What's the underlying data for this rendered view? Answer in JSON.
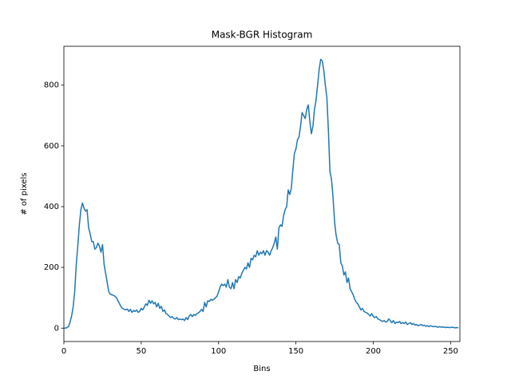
{
  "chart_data": {
    "type": "line",
    "title": "Mask-BGR Histogram",
    "x_label": "Bins",
    "y_label": "# of pixels",
    "color": "#1f77b4",
    "x": [
      0,
      1,
      2,
      3,
      4,
      5,
      6,
      7,
      8,
      9,
      10,
      11,
      12,
      13,
      14,
      15,
      16,
      17,
      18,
      19,
      20,
      21,
      22,
      23,
      24,
      25,
      26,
      27,
      28,
      29,
      30,
      31,
      32,
      33,
      34,
      35,
      36,
      37,
      38,
      39,
      40,
      41,
      42,
      43,
      44,
      45,
      46,
      47,
      48,
      49,
      50,
      51,
      52,
      53,
      54,
      55,
      56,
      57,
      58,
      59,
      60,
      61,
      62,
      63,
      64,
      65,
      66,
      67,
      68,
      69,
      70,
      71,
      72,
      73,
      74,
      75,
      76,
      77,
      78,
      79,
      80,
      81,
      82,
      83,
      84,
      85,
      86,
      87,
      88,
      89,
      90,
      91,
      92,
      93,
      94,
      95,
      96,
      97,
      98,
      99,
      100,
      101,
      102,
      103,
      104,
      105,
      106,
      107,
      108,
      109,
      110,
      111,
      112,
      113,
      114,
      115,
      116,
      117,
      118,
      119,
      120,
      121,
      122,
      123,
      124,
      125,
      126,
      127,
      128,
      129,
      130,
      131,
      132,
      133,
      134,
      135,
      136,
      137,
      138,
      139,
      140,
      141,
      142,
      143,
      144,
      145,
      146,
      147,
      148,
      149,
      150,
      151,
      152,
      153,
      154,
      155,
      156,
      157,
      158,
      159,
      160,
      161,
      162,
      163,
      164,
      165,
      166,
      167,
      168,
      169,
      170,
      171,
      172,
      173,
      174,
      175,
      176,
      177,
      178,
      179,
      180,
      181,
      182,
      183,
      184,
      185,
      186,
      187,
      188,
      189,
      190,
      191,
      192,
      193,
      194,
      195,
      196,
      197,
      198,
      199,
      200,
      201,
      202,
      203,
      204,
      205,
      206,
      207,
      208,
      209,
      210,
      211,
      212,
      213,
      214,
      215,
      216,
      217,
      218,
      219,
      220,
      221,
      222,
      223,
      224,
      225,
      226,
      227,
      228,
      229,
      230,
      231,
      232,
      233,
      234,
      235,
      236,
      237,
      238,
      239,
      240,
      241,
      242,
      243,
      244,
      245,
      246,
      247,
      248,
      249,
      250,
      251,
      252,
      253,
      254,
      255
    ],
    "values": [
      0,
      0,
      2,
      5,
      20,
      40,
      70,
      120,
      210,
      270,
      340,
      390,
      412,
      395,
      385,
      390,
      330,
      310,
      285,
      285,
      260,
      265,
      280,
      270,
      250,
      275,
      210,
      180,
      150,
      120,
      112,
      110,
      108,
      105,
      100,
      90,
      80,
      70,
      65,
      62,
      60,
      63,
      55,
      62,
      52,
      58,
      55,
      60,
      52,
      55,
      65,
      60,
      70,
      80,
      75,
      92,
      82,
      90,
      80,
      85,
      70,
      82,
      65,
      72,
      55,
      60,
      48,
      45,
      40,
      35,
      38,
      32,
      30,
      35,
      28,
      30,
      28,
      30,
      25,
      35,
      28,
      40,
      45,
      38,
      45,
      42,
      48,
      50,
      55,
      62,
      55,
      85,
      70,
      90,
      88,
      95,
      92,
      95,
      100,
      105,
      120,
      135,
      145,
      140,
      145,
      135,
      160,
      135,
      130,
      150,
      130,
      160,
      150,
      170,
      165,
      180,
      190,
      200,
      195,
      215,
      200,
      230,
      225,
      240,
      235,
      255,
      240,
      250,
      245,
      255,
      240,
      255,
      250,
      240,
      255,
      265,
      280,
      300,
      260,
      330,
      340,
      335,
      370,
      390,
      400,
      455,
      440,
      460,
      520,
      575,
      590,
      620,
      630,
      665,
      710,
      700,
      690,
      720,
      735,
      680,
      640,
      665,
      720,
      750,
      800,
      850,
      885,
      880,
      850,
      800,
      760,
      650,
      515,
      490,
      430,
      350,
      305,
      280,
      275,
      215,
      205,
      175,
      185,
      150,
      165,
      130,
      120,
      110,
      95,
      85,
      80,
      70,
      60,
      65,
      55,
      52,
      50,
      45,
      40,
      48,
      38,
      35,
      38,
      30,
      28,
      25,
      22,
      25,
      20,
      22,
      30,
      25,
      18,
      25,
      15,
      20,
      18,
      22,
      15,
      18,
      15,
      20,
      12,
      15,
      18,
      12,
      15,
      10,
      12,
      8,
      10,
      12,
      8,
      10,
      6,
      8,
      5,
      8,
      6,
      5,
      6,
      4,
      3,
      5,
      3,
      4,
      3,
      2,
      3,
      2,
      2,
      3,
      2,
      1,
      2,
      1
    ],
    "xlim": [
      0,
      256
    ],
    "ylim": [
      -44,
      928
    ],
    "xticks": [
      0,
      50,
      100,
      150,
      200,
      250
    ],
    "yticks": [
      0,
      200,
      400,
      600,
      800
    ]
  }
}
